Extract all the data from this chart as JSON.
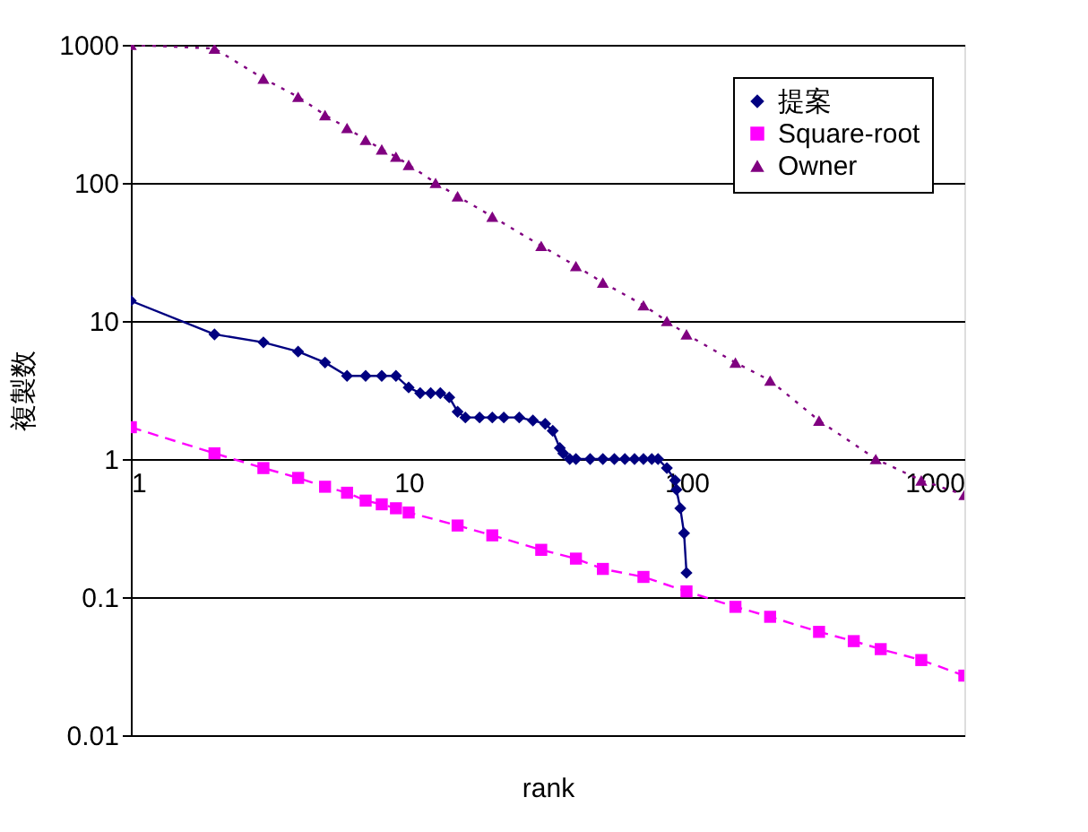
{
  "chart_data": {
    "type": "line",
    "xlabel": "rank",
    "ylabel": "複製数",
    "log": "xy",
    "grid": "y",
    "legend": "top right",
    "xlim": [
      1,
      1000
    ],
    "ylim": [
      0.01,
      1000
    ],
    "xticks": [
      1,
      10,
      100,
      1000
    ],
    "yticks": [
      0.01,
      0.1,
      1,
      10,
      100,
      1000
    ],
    "series": [
      {
        "name": "提案",
        "color": "#000080",
        "marker": "diamond",
        "line_style": "solid",
        "x": [
          1,
          2,
          3,
          4,
          5,
          6,
          7,
          8,
          9,
          10,
          11,
          12,
          13,
          14,
          15,
          16,
          18,
          20,
          22,
          25,
          28,
          31,
          33,
          35,
          36,
          38,
          40,
          45,
          50,
          55,
          60,
          65,
          70,
          75,
          79,
          85,
          91,
          92,
          95,
          98,
          100
        ],
        "values": [
          14,
          8,
          7,
          6,
          5,
          4,
          4,
          4,
          4,
          3.3,
          3,
          3,
          3,
          2.8,
          2.2,
          2,
          2,
          2,
          2,
          2,
          1.9,
          1.8,
          1.6,
          1.2,
          1.1,
          1,
          1,
          1,
          1,
          1,
          1,
          1,
          1,
          1,
          1,
          0.86,
          0.7,
          0.6,
          0.44,
          0.29,
          0.15
        ]
      },
      {
        "name": "Square-root",
        "color": "#ff00ff",
        "marker": "square",
        "line_style": "dashed",
        "x": [
          1,
          2,
          3,
          4,
          5,
          6,
          7,
          8,
          9,
          10,
          15,
          20,
          30,
          40,
          50,
          70,
          100,
          150,
          200,
          300,
          400,
          500,
          700,
          1000
        ],
        "values": [
          1.7,
          1.1,
          0.86,
          0.73,
          0.63,
          0.57,
          0.5,
          0.47,
          0.44,
          0.41,
          0.33,
          0.28,
          0.22,
          0.19,
          0.16,
          0.14,
          0.11,
          0.085,
          0.072,
          0.056,
          0.048,
          0.042,
          0.035,
          0.027
        ]
      },
      {
        "name": "Owner",
        "color": "#800080",
        "marker": "triangle",
        "line_style": "dotted",
        "x": [
          1,
          2,
          3,
          4,
          5,
          6,
          7,
          8,
          9,
          10,
          12.5,
          15,
          20,
          30,
          40,
          50,
          70,
          85,
          100,
          150,
          200,
          300,
          480,
          700,
          1000
        ],
        "values": [
          1000,
          940,
          570,
          420,
          310,
          250,
          205,
          175,
          155,
          135,
          100,
          80,
          57,
          35,
          25,
          19,
          13,
          10,
          8,
          5,
          3.7,
          1.9,
          1,
          0.7,
          0.55
        ]
      }
    ]
  }
}
